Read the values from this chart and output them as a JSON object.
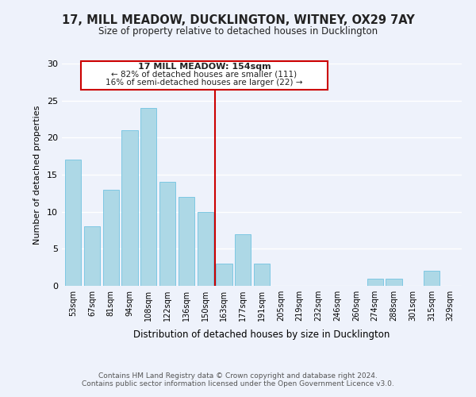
{
  "title1": "17, MILL MEADOW, DUCKLINGTON, WITNEY, OX29 7AY",
  "title2": "Size of property relative to detached houses in Ducklington",
  "xlabel": "Distribution of detached houses by size in Ducklington",
  "ylabel": "Number of detached properties",
  "bar_labels": [
    "53sqm",
    "67sqm",
    "81sqm",
    "94sqm",
    "108sqm",
    "122sqm",
    "136sqm",
    "150sqm",
    "163sqm",
    "177sqm",
    "191sqm",
    "205sqm",
    "219sqm",
    "232sqm",
    "246sqm",
    "260sqm",
    "274sqm",
    "288sqm",
    "301sqm",
    "315sqm",
    "329sqm"
  ],
  "bar_values": [
    17,
    8,
    13,
    21,
    24,
    14,
    12,
    10,
    3,
    7,
    3,
    0,
    0,
    0,
    0,
    0,
    1,
    1,
    0,
    2,
    0
  ],
  "bar_color": "#add8e6",
  "bar_edge_color": "#7ec8e3",
  "vline_x": 7.5,
  "vline_color": "#cc0000",
  "annotation_title": "17 MILL MEADOW: 154sqm",
  "annotation_line1": "← 82% of detached houses are smaller (111)",
  "annotation_line2": "16% of semi-detached houses are larger (22) →",
  "annotation_box_color": "#ffffff",
  "annotation_box_edge": "#cc0000",
  "ylim": [
    0,
    30
  ],
  "yticks": [
    0,
    5,
    10,
    15,
    20,
    25,
    30
  ],
  "footer1": "Contains HM Land Registry data © Crown copyright and database right 2024.",
  "footer2": "Contains public sector information licensed under the Open Government Licence v3.0.",
  "bg_color": "#eef2fb"
}
